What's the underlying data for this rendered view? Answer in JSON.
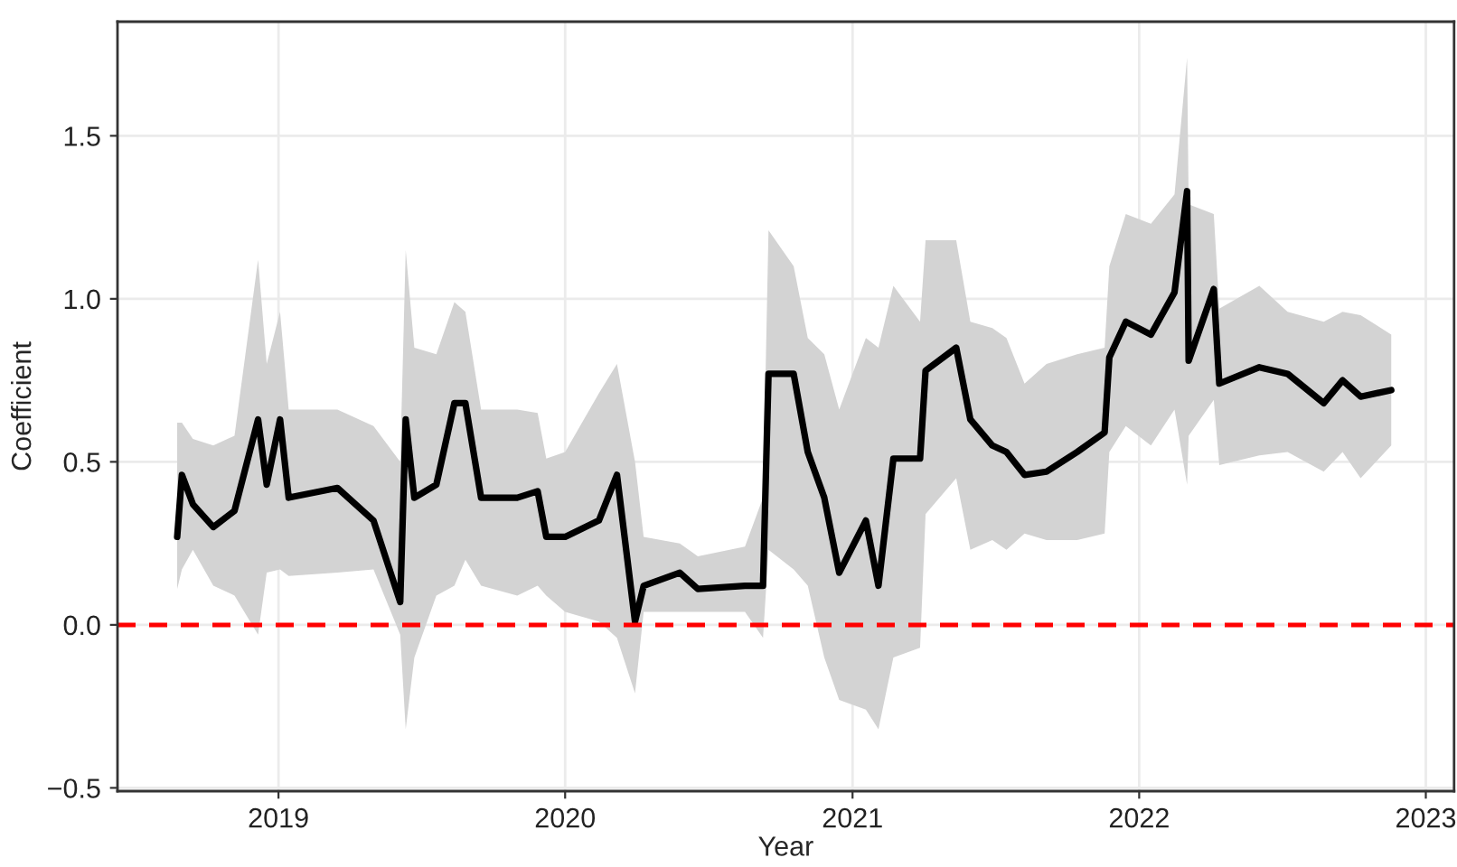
{
  "chart_data": {
    "type": "line",
    "xlabel": "Year",
    "ylabel": "Coefficient",
    "x": [
      "2018-08-25",
      "2018-08-31",
      "2018-09-14",
      "2018-10-10",
      "2018-11-06",
      "2018-12-06",
      "2018-12-17",
      "2019-01-03",
      "2019-01-14",
      "2019-03-17",
      "2019-05-02",
      "2019-06-05",
      "2019-06-12",
      "2019-06-23",
      "2019-07-21",
      "2019-08-13",
      "2019-08-27",
      "2019-09-16",
      "2019-11-01",
      "2019-11-27",
      "2019-12-08",
      "2020-01-01",
      "2020-02-13",
      "2020-03-07",
      "2020-03-30",
      "2020-04-10",
      "2020-05-26",
      "2020-06-18",
      "2020-08-17",
      "2020-09-09",
      "2020-09-16",
      "2020-10-18",
      "2020-11-05",
      "2020-11-26",
      "2020-12-15",
      "2021-01-18",
      "2021-02-03",
      "2021-02-22",
      "2021-03-28",
      "2021-04-04",
      "2021-05-13",
      "2021-05-31",
      "2021-06-28",
      "2021-07-16",
      "2021-08-08",
      "2021-09-05",
      "2021-10-14",
      "2021-11-18",
      "2021-11-24",
      "2021-12-15",
      "2022-01-16",
      "2022-02-15",
      "2022-03-03",
      "2022-03-05",
      "2022-04-06",
      "2022-04-13",
      "2022-06-03",
      "2022-07-09",
      "2022-08-24",
      "2022-09-17",
      "2022-10-10",
      "2022-11-18"
    ],
    "series": [
      {
        "color": "#000000",
        "values": [
          0.27,
          0.46,
          0.37,
          0.3,
          0.35,
          0.63,
          0.43,
          0.63,
          0.39,
          0.42,
          0.32,
          0.07,
          0.63,
          0.39,
          0.43,
          0.68,
          0.68,
          0.39,
          0.39,
          0.41,
          0.27,
          0.27,
          0.32,
          0.46,
          0.01,
          0.12,
          0.16,
          0.11,
          0.12,
          0.12,
          0.77,
          0.77,
          0.53,
          0.39,
          0.16,
          0.32,
          0.12,
          0.51,
          0.51,
          0.78,
          0.85,
          0.63,
          0.55,
          0.53,
          0.46,
          0.47,
          0.53,
          0.59,
          0.82,
          0.93,
          0.89,
          1.02,
          1.33,
          0.81,
          1.03,
          0.74,
          0.79,
          0.77,
          0.68,
          0.75,
          0.7,
          0.72
        ],
        "lower": [
          0.11,
          0.17,
          0.23,
          0.12,
          0.09,
          -0.03,
          0.16,
          0.17,
          0.15,
          0.16,
          0.17,
          -0.03,
          -0.32,
          -0.1,
          0.09,
          0.12,
          0.2,
          0.12,
          0.09,
          0.12,
          0.09,
          0.04,
          0.01,
          -0.04,
          -0.21,
          0.04,
          0.04,
          0.04,
          0.04,
          -0.04,
          0.23,
          0.17,
          0.12,
          -0.1,
          -0.23,
          -0.26,
          -0.32,
          -0.1,
          -0.07,
          0.34,
          0.45,
          0.23,
          0.26,
          0.23,
          0.28,
          0.26,
          0.26,
          0.28,
          0.53,
          0.61,
          0.55,
          0.66,
          0.43,
          0.58,
          0.69,
          0.49,
          0.52,
          0.53,
          0.47,
          0.53,
          0.45,
          0.55
        ],
        "upper": [
          0.62,
          0.62,
          0.57,
          0.55,
          0.58,
          1.12,
          0.8,
          0.96,
          0.66,
          0.66,
          0.61,
          0.5,
          1.15,
          0.85,
          0.83,
          0.99,
          0.96,
          0.66,
          0.66,
          0.65,
          0.51,
          0.53,
          0.71,
          0.8,
          0.5,
          0.27,
          0.25,
          0.21,
          0.24,
          0.39,
          1.21,
          1.1,
          0.88,
          0.83,
          0.66,
          0.88,
          0.85,
          1.04,
          0.93,
          1.18,
          1.18,
          0.93,
          0.91,
          0.88,
          0.74,
          0.8,
          0.83,
          0.85,
          1.1,
          1.26,
          1.23,
          1.32,
          1.74,
          1.29,
          1.26,
          0.97,
          1.04,
          0.96,
          0.93,
          0.96,
          0.95,
          0.89
        ]
      }
    ],
    "xlim": [
      "2018-06-10",
      "2023-02-06"
    ],
    "xticks": [
      {
        "value": "2019-01-01",
        "label": "2019"
      },
      {
        "value": "2020-01-01",
        "label": "2020"
      },
      {
        "value": "2021-01-01",
        "label": "2021"
      },
      {
        "value": "2022-01-01",
        "label": "2022"
      },
      {
        "value": "2023-01-01",
        "label": "2023"
      }
    ],
    "ylim": [
      -0.51,
      1.85
    ],
    "yticks": [
      {
        "value": -0.5,
        "label": "−0.5"
      },
      {
        "value": 0,
        "label": "0.0"
      },
      {
        "value": 0.5,
        "label": "0.5"
      },
      {
        "value": 1.0,
        "label": "1.0"
      },
      {
        "value": 1.5,
        "label": "1.5"
      }
    ],
    "ref_lines": [
      {
        "axis": "y",
        "value": 0,
        "color": "#ff0000",
        "line_style": "dashed"
      }
    ],
    "grid": true,
    "line_style": "solid",
    "marker": "none"
  }
}
